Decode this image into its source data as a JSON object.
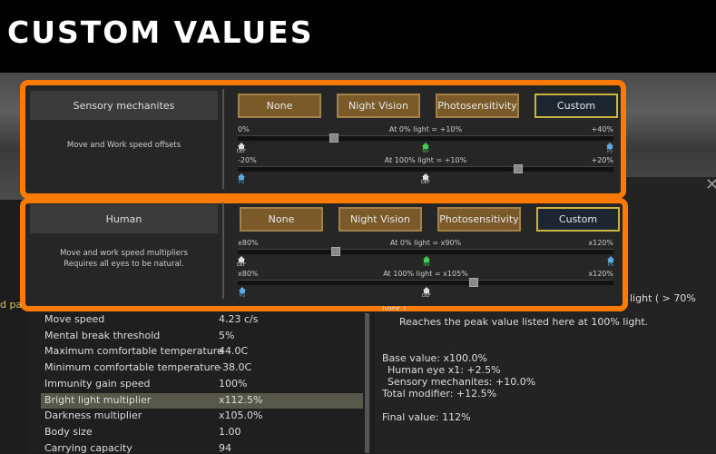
{
  "header": {
    "title": "CUSTOM VALUES"
  },
  "panels": [
    {
      "name": "Sensory mechanites",
      "description": [
        "Move and Work speed offsets"
      ],
      "buttons": [
        "None",
        "Night Vision",
        "Photosensitivity",
        "Custom"
      ],
      "sliders": [
        {
          "min": "0%",
          "caption": "At 0% light = +10%",
          "max": "+40%",
          "markers": [
            "DEF",
            "NV",
            "PS"
          ]
        },
        {
          "min": "-20%",
          "caption": "At 100% light = +10%",
          "max": "+20%",
          "markers": [
            "PS",
            "DEF"
          ]
        }
      ]
    },
    {
      "name": "Human",
      "description": [
        "Move and work speed multipliers",
        "Requires all eyes to be natural."
      ],
      "buttons": [
        "None",
        "Night Vision",
        "Photosensitivity",
        "Custom"
      ],
      "sliders": [
        {
          "min": "x80%",
          "caption": "At 0% light = x90%",
          "max": "x120%",
          "markers": [
            "DEF",
            "NV",
            "PS"
          ]
        },
        {
          "min": "x80%",
          "caption": "At 100% light = x105%",
          "max": "x120%",
          "markers": [
            "PS",
            "DEF"
          ]
        }
      ]
    }
  ],
  "stats": {
    "cut_label": "d pa",
    "rows": [
      [
        "Move speed",
        "4.23 c/s"
      ],
      [
        "Mental break threshold",
        "5%"
      ],
      [
        "Maximum comfortable temperature",
        "44.0C"
      ],
      [
        "Minimum comfortable temperature",
        "-38.0C"
      ],
      [
        "Immunity gain speed",
        "100%"
      ],
      [
        "Bright light multiplier",
        "x112.5%"
      ],
      [
        "Darkness multiplier",
        "x105.0%"
      ],
      [
        "Body size",
        "1.00"
      ],
      [
        "Carrying capacity",
        "94"
      ]
    ]
  },
  "explanation": {
    "cut_top": "light ( > 70%",
    "cut_second": "light ).",
    "lines": [
      "Reaches the peak value listed here at 100% light.",
      "Base value: x100.0%",
      "Human eye x1: +2.5%",
      "Sensory mechanites: +10.0%",
      "Total modifier: +12.5%",
      "Final value: 112%"
    ]
  }
}
